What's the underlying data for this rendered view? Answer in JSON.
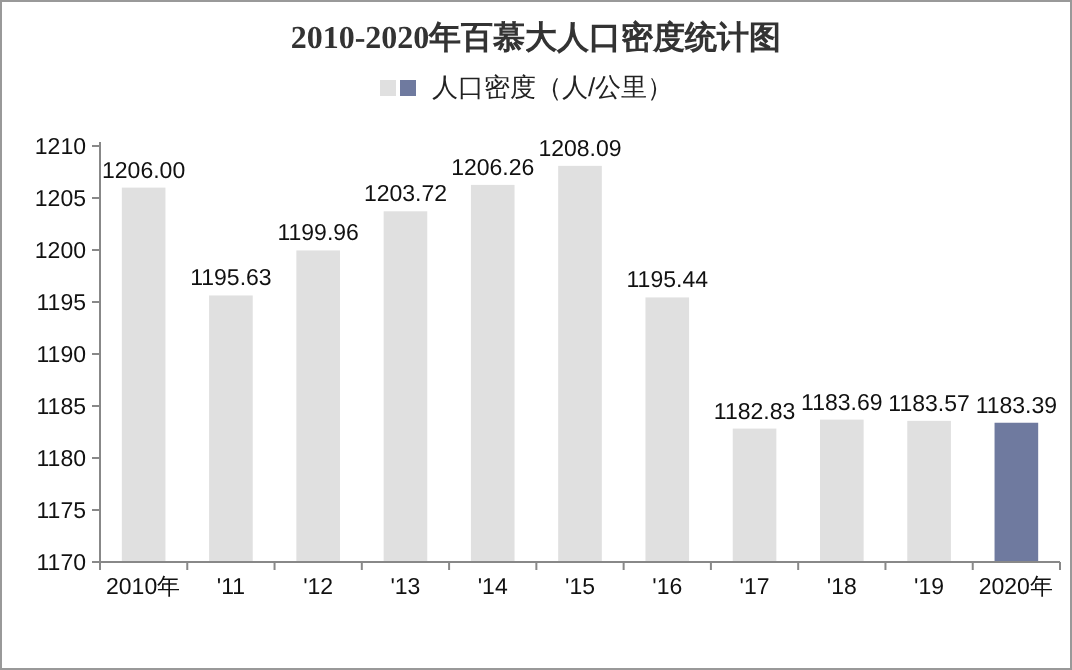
{
  "chart_data": {
    "type": "bar",
    "title": "2010-2020年百慕大人口密度统计图",
    "categories": [
      "2010年",
      "'11",
      "'12",
      "'13",
      "'14",
      "'15",
      "'16",
      "'17",
      "'18",
      "'19",
      "2020年"
    ],
    "series": [
      {
        "name": "人口密度（人/公里）",
        "colors": [
          "#e0e0e0",
          "#e0e0e0",
          "#e0e0e0",
          "#e0e0e0",
          "#e0e0e0",
          "#e0e0e0",
          "#e0e0e0",
          "#e0e0e0",
          "#e0e0e0",
          "#e0e0e0",
          "#6f7a9f"
        ],
        "values": [
          1206.0,
          1195.63,
          1199.96,
          1203.72,
          1206.26,
          1208.09,
          1195.44,
          1182.83,
          1183.69,
          1183.57,
          1183.39
        ],
        "value_labels": [
          "1206.00",
          "1195.63",
          "1199.96",
          "1203.72",
          "1206.26",
          "1208.09",
          "1195.44",
          "1182.83",
          "1183.69",
          "1183.57",
          "1183.39"
        ]
      }
    ],
    "ylim": [
      1170,
      1210
    ],
    "yticks": [
      1170,
      1175,
      1180,
      1185,
      1190,
      1195,
      1200,
      1205,
      1210
    ],
    "grid": false,
    "legend": "top"
  }
}
